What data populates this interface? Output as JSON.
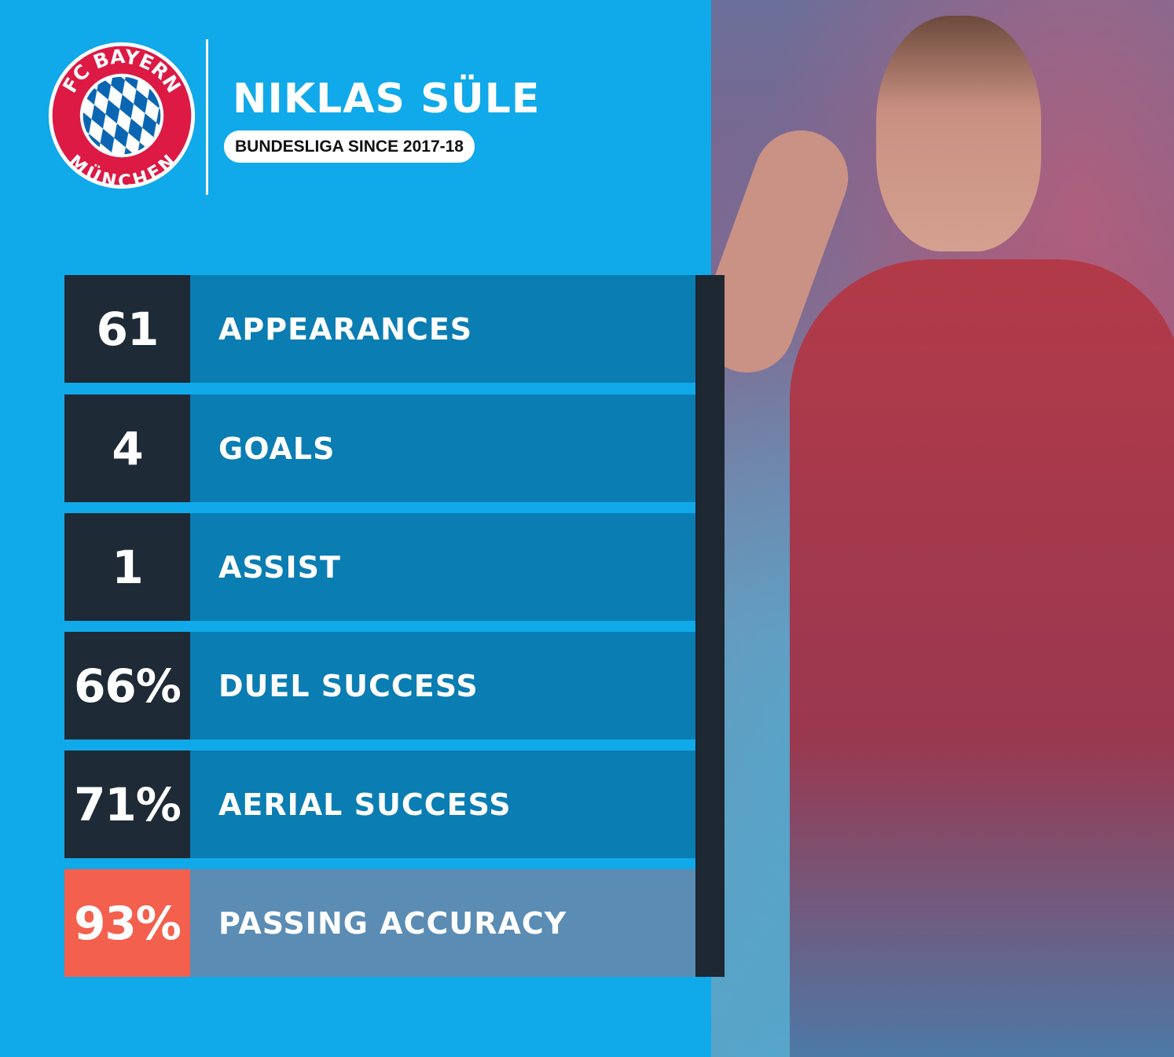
{
  "header": {
    "logo_text_top": "FC BAYERN",
    "logo_text_bottom": "MÜNCHEN",
    "player_name": "NIKLAS SÜLE",
    "subtitle": "BUNDESLIGA SINCE 2017-18"
  },
  "stats": [
    {
      "value": "61",
      "label": "APPEARANCES"
    },
    {
      "value": "4",
      "label": "GOALS"
    },
    {
      "value": "1",
      "label": "ASSIST"
    },
    {
      "value": "66%",
      "label": "DUEL SUCCESS"
    },
    {
      "value": "71%",
      "label": "AERIAL SUCCESS"
    },
    {
      "value": "93%",
      "label": "PASSING ACCURACY",
      "highlight": true
    }
  ],
  "colors": {
    "background": "#10a9ea",
    "number_box": "#1e2a35",
    "label_bar": "#0a7db2",
    "highlight_number": "#f3604d",
    "highlight_label": "#5b8cb3"
  }
}
